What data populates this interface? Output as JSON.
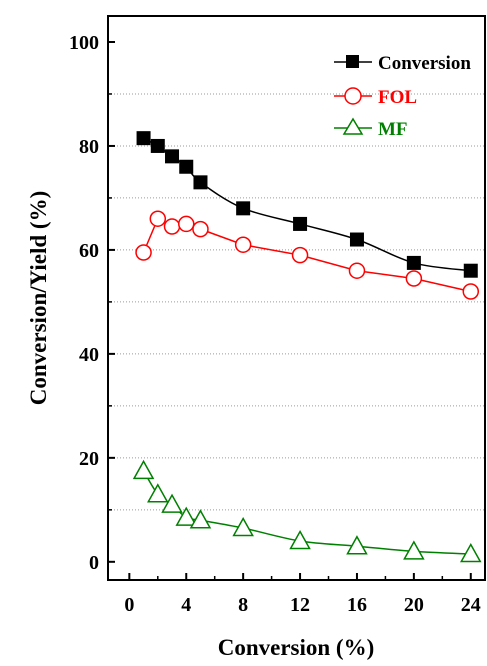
{
  "chart_data": {
    "type": "line",
    "xlabel": "Conversion (%)",
    "ylabel": "Conversion/Yield (%)",
    "xlim": [
      -1.5,
      25
    ],
    "ylim": [
      -3.5,
      105
    ],
    "x_ticks": [
      "0",
      "4",
      "8",
      "12",
      "16",
      "20",
      "24"
    ],
    "y_ticks": [
      "0",
      "20",
      "40",
      "60",
      "80",
      "100"
    ],
    "grid": "horizontal dotted at every 10",
    "legend_position": "top-right",
    "series": [
      {
        "name": "Conversion",
        "color": "#000000",
        "marker": "filled-square",
        "x": [
          1,
          2,
          3,
          4,
          5,
          8,
          12,
          16,
          20,
          24
        ],
        "y": [
          81.5,
          80,
          78,
          76,
          73,
          68,
          65,
          62,
          57.5,
          56
        ]
      },
      {
        "name": "FOL",
        "color": "#ff0000",
        "marker": "open-circle",
        "x": [
          1,
          2,
          3,
          4,
          5,
          8,
          12,
          16,
          20,
          24
        ],
        "y": [
          59.5,
          66,
          64.5,
          65,
          64,
          61,
          59,
          56,
          54.5,
          52
        ]
      },
      {
        "name": "MF",
        "color": "#008000",
        "marker": "open-triangle",
        "x": [
          1,
          2,
          3,
          4,
          5,
          8,
          12,
          16,
          20,
          24
        ],
        "y": [
          17.5,
          13,
          11,
          8.5,
          8,
          6.5,
          4,
          3,
          2,
          1.5
        ]
      }
    ]
  }
}
